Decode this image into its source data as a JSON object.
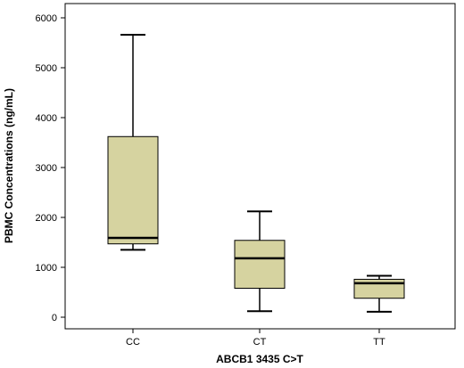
{
  "chart_data": {
    "type": "boxplot",
    "xlabel": "ABCB1 3435 C>T",
    "ylabel": "PBMC Concentrations (ng/mL)",
    "ylim": [
      -300,
      6300
    ],
    "yticks": [
      0,
      1000,
      2000,
      3000,
      4000,
      5000,
      6000
    ],
    "categories": [
      "CC",
      "CT",
      "TT"
    ],
    "boxes": [
      {
        "category": "CC",
        "min": 1350,
        "q1": 1470,
        "median": 1590,
        "q3": 3620,
        "max": 5660
      },
      {
        "category": "CT",
        "min": 120,
        "q1": 580,
        "median": 1180,
        "q3": 1540,
        "max": 2120
      },
      {
        "category": "TT",
        "min": 110,
        "q1": 380,
        "median": 680,
        "q3": 760,
        "max": 830
      }
    ],
    "grid": false,
    "colors": {
      "box_fill": "#d6d3a0",
      "stroke": "#000000"
    }
  }
}
